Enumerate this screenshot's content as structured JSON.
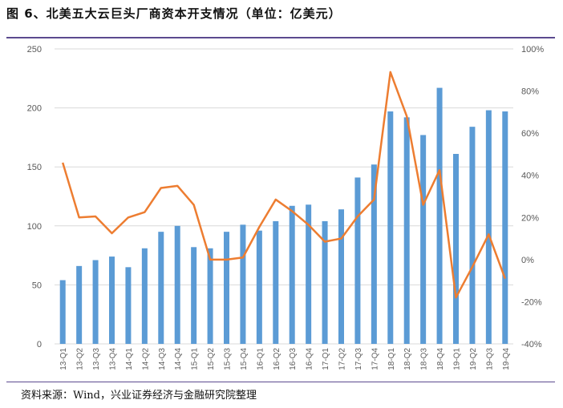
{
  "title": "图 6、北美五大云巨头厂商资本开支情况（单位：亿美元）",
  "source": "资料来源：Wind，兴业证券经济与金融研究院整理",
  "chart_data": {
    "type": "bar+line",
    "categories": [
      "13-Q1",
      "13-Q2",
      "13-Q3",
      "13-Q4",
      "14-Q1",
      "14-Q2",
      "14-Q3",
      "14-Q4",
      "15-Q1",
      "15-Q2",
      "15-Q3",
      "15-Q4",
      "16-Q1",
      "16-Q2",
      "16-Q3",
      "16-Q4",
      "17-Q1",
      "17-Q2",
      "17-Q3",
      "17-Q4",
      "18-Q1",
      "18-Q2",
      "18-Q3",
      "18-Q4",
      "19-Q1",
      "19-Q2",
      "19-Q3",
      "19-Q4"
    ],
    "series": [
      {
        "type": "bar",
        "axis": "left",
        "color": "#5b9bd5",
        "values": [
          54,
          66,
          71,
          74,
          65,
          81,
          95,
          100,
          82,
          81,
          95,
          101,
          96,
          104,
          117,
          118,
          104,
          114,
          141,
          152,
          197,
          192,
          177,
          217,
          161,
          184,
          198,
          197
        ]
      },
      {
        "type": "line",
        "axis": "right",
        "color": "#ed7d31",
        "values": [
          46,
          20,
          20.5,
          12.5,
          20,
          22.5,
          34,
          35,
          26,
          0,
          0,
          1,
          15.5,
          28.5,
          23,
          16.5,
          8.5,
          10,
          20.5,
          28.5,
          89,
          68,
          26,
          42.5,
          -18,
          -3.5,
          12,
          -9
        ]
      }
    ],
    "left_axis": {
      "ylim": [
        0,
        250
      ],
      "ticks": [
        "0",
        "50",
        "100",
        "150",
        "200",
        "250"
      ]
    },
    "right_axis": {
      "ylim": [
        -40,
        100
      ],
      "ticks": [
        "-40%",
        "-20%",
        "0%",
        "20%",
        "40%",
        "60%",
        "80%",
        "100%"
      ]
    },
    "grid": true
  }
}
